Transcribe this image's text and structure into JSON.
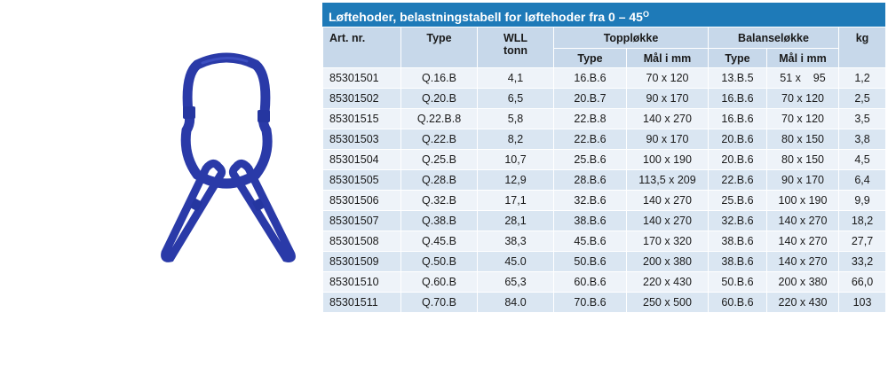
{
  "title": {
    "text": "Løftehoder, belastningstabell for løftehoder fra 0 – 45",
    "sup": "O"
  },
  "headers": {
    "art_nr": "Art. nr.",
    "type": "Type",
    "wll": "WLL",
    "wll_unit": "tonn",
    "topploekke": "Toppløkke",
    "balanseloekke": "Balanseløkke",
    "kg": "kg",
    "sub_type_top": "Type",
    "sub_mal_top": "Mål i mm",
    "sub_type_bal": "Type",
    "sub_mal_bal": "Mål i mm"
  },
  "rows": [
    {
      "art": "85301501",
      "type": "Q.16.B",
      "wll": "4,1",
      "top_type": "16.B.6",
      "top_mal": "70 x 120",
      "bal_type": "13.B.5",
      "bal_mal": "51 x    95",
      "kg": "1,2"
    },
    {
      "art": "85301502",
      "type": "Q.20.B",
      "wll": "6,5",
      "top_type": "20.B.7",
      "top_mal": "90 x 170",
      "bal_type": "16.B.6",
      "bal_mal": "70 x 120",
      "kg": "2,5"
    },
    {
      "art": "85301515",
      "type": "Q.22.B.8",
      "wll": "5,8",
      "top_type": "22.B.8",
      "top_mal": "140 x 270",
      "bal_type": "16.B.6",
      "bal_mal": "70 x 120",
      "kg": "3,5"
    },
    {
      "art": "85301503",
      "type": "Q.22.B",
      "wll": "8,2",
      "top_type": "22.B.6",
      "top_mal": "90 x 170",
      "bal_type": "20.B.6",
      "bal_mal": "80 x 150",
      "kg": "3,8"
    },
    {
      "art": "85301504",
      "type": "Q.25.B",
      "wll": "10,7",
      "top_type": "25.B.6",
      "top_mal": "100 x 190",
      "bal_type": "20.B.6",
      "bal_mal": "80 x 150",
      "kg": "4,5"
    },
    {
      "art": "85301505",
      "type": "Q.28.B",
      "wll": "12,9",
      "top_type": "28.B.6",
      "top_mal": "113,5 x 209",
      "bal_type": "22.B.6",
      "bal_mal": "90 x 170",
      "kg": "6,4"
    },
    {
      "art": "85301506",
      "type": "Q.32.B",
      "wll": "17,1",
      "top_type": "32.B.6",
      "top_mal": "140 x 270",
      "bal_type": "25.B.6",
      "bal_mal": "100 x 190",
      "kg": "9,9"
    },
    {
      "art": "85301507",
      "type": "Q.38.B",
      "wll": "28,1",
      "top_type": "38.B.6",
      "top_mal": "140 x 270",
      "bal_type": "32.B.6",
      "bal_mal": "140 x 270",
      "kg": "18,2"
    },
    {
      "art": "85301508",
      "type": "Q.45.B",
      "wll": "38,3",
      "top_type": "45.B.6",
      "top_mal": "170 x 320",
      "bal_type": "38.B.6",
      "bal_mal": "140 x 270",
      "kg": "27,7"
    },
    {
      "art": "85301509",
      "type": "Q.50.B",
      "wll": "45.0",
      "top_type": "50.B.6",
      "top_mal": "200 x 380",
      "bal_type": "38.B.6",
      "bal_mal": "140 x 270",
      "kg": "33,2"
    },
    {
      "art": "85301510",
      "type": "Q.60.B",
      "wll": "65,3",
      "top_type": "60.B.6",
      "top_mal": "220 x 430",
      "bal_type": "50.B.6",
      "bal_mal": "200 x 380",
      "kg": "66,0"
    },
    {
      "art": "85301511",
      "type": "Q.70.B",
      "wll": "84.0",
      "top_type": "70.B.6",
      "top_mal": "250 x 500",
      "bal_type": "60.B.6",
      "bal_mal": "220 x 430",
      "kg": "103"
    }
  ],
  "colors": {
    "title_bar": "#1e7ab8",
    "header_bg": "#c7d8ea",
    "row_light": "#eef3f9",
    "row_dark": "#dae6f2",
    "link_color": "#2a3aa8"
  },
  "icons": {
    "illustration": "master-link-assembly-icon"
  }
}
